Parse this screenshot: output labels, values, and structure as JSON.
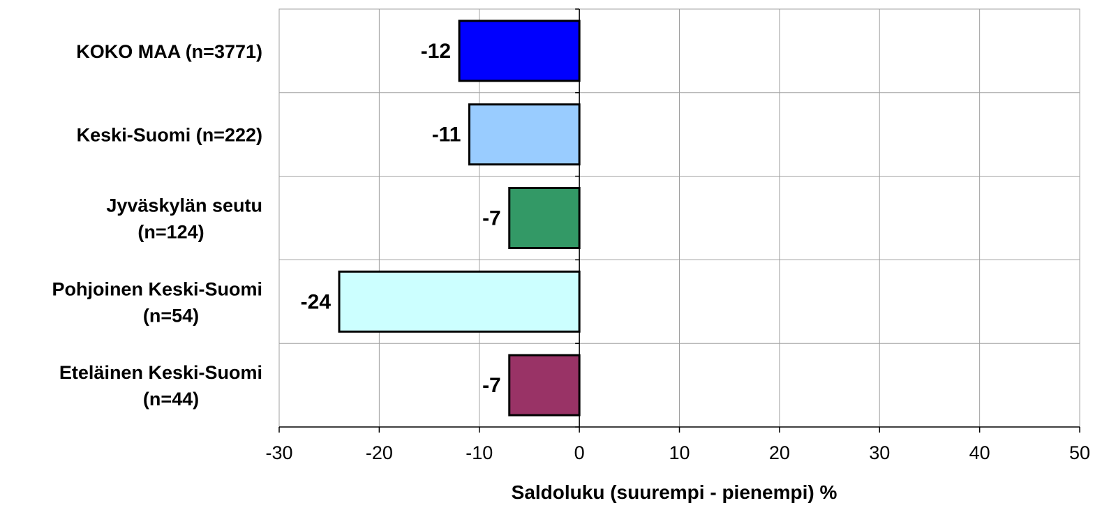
{
  "chart_data": {
    "type": "bar",
    "orientation": "horizontal",
    "categories": [
      [
        "KOKO MAA    (n=3771)"
      ],
      [
        "Keski-Suomi   (n=222)"
      ],
      [
        "Jyväskylän seutu",
        "(n=124)"
      ],
      [
        "Pohjoinen Keski-Suomi",
        "(n=54)"
      ],
      [
        "Eteläinen Keski-Suomi",
        "(n=44)"
      ]
    ],
    "values": [
      -12,
      -11,
      -7,
      -24,
      -7
    ],
    "colors": [
      "#0000ff",
      "#99ccff",
      "#339966",
      "#ccffff",
      "#993366"
    ],
    "xlabel": "Saldoluku (suurempi - pienempi) %",
    "xlim": [
      -30,
      50
    ],
    "xticks": [
      -30,
      -20,
      -10,
      0,
      10,
      20,
      30,
      40,
      50
    ],
    "grid": true,
    "legend": "none"
  }
}
